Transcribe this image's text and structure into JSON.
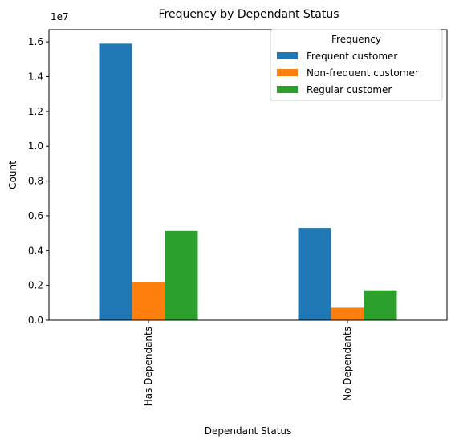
{
  "chart_data": {
    "type": "bar",
    "title": "Frequency by Dependant Status",
    "xlabel": "Dependant Status",
    "ylabel": "Count",
    "y_offset_label": "1e7",
    "categories": [
      "Has Dependants",
      "No Dependants"
    ],
    "series": [
      {
        "name": "Frequent customer",
        "color": "#1f77b4",
        "values": [
          15900000,
          5300000
        ]
      },
      {
        "name": "Non-frequent customer",
        "color": "#ff7f0e",
        "values": [
          2170000,
          720000
        ]
      },
      {
        "name": "Regular customer",
        "color": "#2ca02c",
        "values": [
          5130000,
          1720000
        ]
      }
    ],
    "ylim": [
      0,
      16700000
    ],
    "yticks": [
      0,
      2000000,
      4000000,
      6000000,
      8000000,
      10000000,
      12000000,
      14000000,
      16000000
    ],
    "ytick_labels": [
      "0.0",
      "0.2",
      "0.4",
      "0.6",
      "0.8",
      "1.0",
      "1.2",
      "1.4",
      "1.6"
    ],
    "legend": {
      "title": "Frequency",
      "position": "top-right"
    },
    "grid": false
  }
}
